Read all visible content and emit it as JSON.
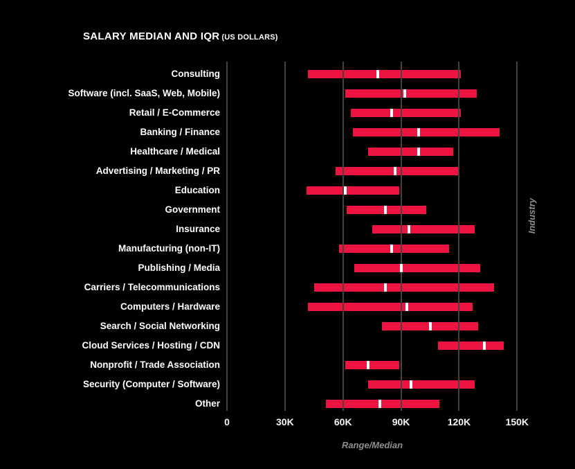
{
  "title": {
    "main": "SALARY MEDIAN AND IQR",
    "sub": "(US DOLLARS)"
  },
  "colors": {
    "background": "#000000",
    "bar_red": "#ED1442",
    "median_white": "#FFFFFF",
    "gridline_gray": "#434343",
    "axis_label_gray": "#8E8E8E",
    "text_white": "#FFFFFF"
  },
  "chart_data": {
    "type": "bar",
    "subtype": "horizontal-range-bar-with-median (IQR)",
    "title": "SALARY MEDIAN AND IQR (US DOLLARS)",
    "xlabel": "Range/Median",
    "ylabel": "Industry",
    "xlim": [
      0,
      150000
    ],
    "x_tick_labels": [
      "0",
      "30K",
      "60K",
      "90K",
      "120K",
      "150K"
    ],
    "x_tick_values": [
      0,
      30000,
      60000,
      90000,
      120000,
      150000
    ],
    "grid": "vertical gridlines drawn over bars",
    "legend": "none",
    "rows": [
      {
        "industry": "Consulting",
        "low": 42000,
        "median": 78000,
        "high": 121000
      },
      {
        "industry": "Software (incl. SaaS, Web, Mobile)",
        "low": 61000,
        "median": 92000,
        "high": 129000
      },
      {
        "industry": "Retail / E-Commerce",
        "low": 64000,
        "median": 85000,
        "high": 121000
      },
      {
        "industry": "Banking / Finance",
        "low": 65000,
        "median": 99000,
        "high": 141000
      },
      {
        "industry": "Healthcare / Medical",
        "low": 73000,
        "median": 99000,
        "high": 117000
      },
      {
        "industry": "Advertising / Marketing / PR",
        "low": 56000,
        "median": 87000,
        "high": 120000
      },
      {
        "industry": "Education",
        "low": 41000,
        "median": 61000,
        "high": 89000
      },
      {
        "industry": "Government",
        "low": 62000,
        "median": 82000,
        "high": 103000
      },
      {
        "industry": "Insurance",
        "low": 75000,
        "median": 94000,
        "high": 128000
      },
      {
        "industry": "Manufacturing (non-IT)",
        "low": 58000,
        "median": 85000,
        "high": 115000
      },
      {
        "industry": "Publishing / Media",
        "low": 66000,
        "median": 90000,
        "high": 131000
      },
      {
        "industry": "Carriers / Telecommunications",
        "low": 45000,
        "median": 82000,
        "high": 138000
      },
      {
        "industry": "Computers / Hardware",
        "low": 42000,
        "median": 93000,
        "high": 127000
      },
      {
        "industry": "Search / Social Networking",
        "low": 80000,
        "median": 105000,
        "high": 130000
      },
      {
        "industry": "Cloud Services / Hosting / CDN",
        "low": 109000,
        "median": 133000,
        "high": 143000
      },
      {
        "industry": "Nonprofit / Trade Association",
        "low": 61000,
        "median": 73000,
        "high": 89000
      },
      {
        "industry": "Security (Computer / Software)",
        "low": 73000,
        "median": 95000,
        "high": 128000
      },
      {
        "industry": "Other",
        "low": 51000,
        "median": 79000,
        "high": 110000
      }
    ]
  }
}
